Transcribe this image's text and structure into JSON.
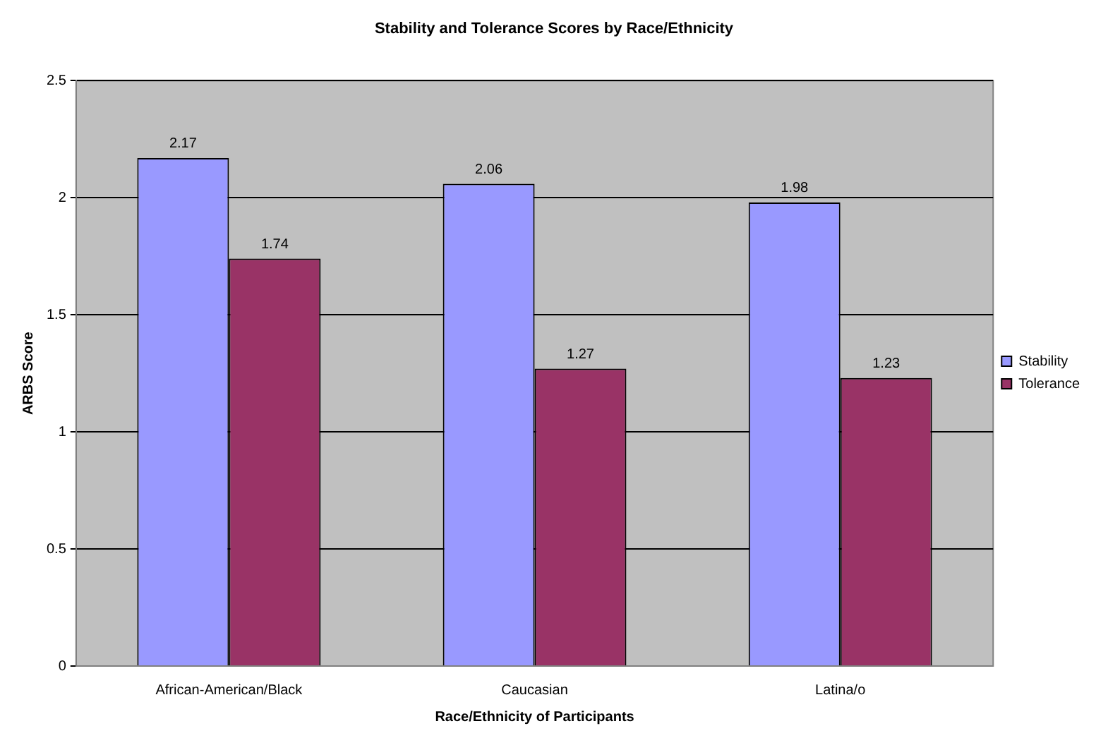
{
  "chart_data": {
    "type": "bar",
    "title": "Stability and Tolerance Scores by Race/Ethnicity",
    "xlabel": "Race/Ethnicity of Participants",
    "ylabel": "ARBS Score",
    "categories": [
      "African-American/Black",
      "Caucasian",
      "Latina/o"
    ],
    "series": [
      {
        "name": "Stability",
        "color": "#9999ff",
        "values": [
          2.17,
          2.06,
          1.98
        ]
      },
      {
        "name": "Tolerance",
        "color": "#993366",
        "values": [
          1.74,
          1.27,
          1.23
        ]
      }
    ],
    "ylim": [
      0,
      2.5
    ],
    "yticks": [
      0,
      0.5,
      1,
      1.5,
      2,
      2.5
    ],
    "grid": "y",
    "legend": "right",
    "data_labels": true
  }
}
